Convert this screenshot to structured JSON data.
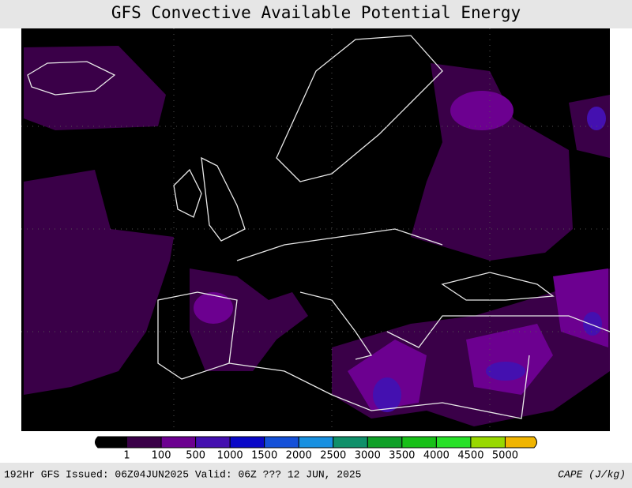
{
  "header": {
    "title": "GFS Convective Available Potential Energy"
  },
  "colorbar": {
    "colors": [
      "#000000",
      "#3a0048",
      "#6c0090",
      "#4410b0",
      "#0a08c8",
      "#1450d8",
      "#1890e0",
      "#10906a",
      "#10a028",
      "#18c018",
      "#28e028",
      "#98d800",
      "#f0b400"
    ],
    "ticks": [
      1,
      100,
      500,
      1000,
      1500,
      2000,
      2500,
      3000,
      3500,
      4000,
      4500,
      5000
    ]
  },
  "footer": {
    "run": "192Hr GFS Issued: 06Z04JUN2025 Valid: 06Z ??? 12 JUN, 2025",
    "field": "CAPE (J/kg)"
  }
}
